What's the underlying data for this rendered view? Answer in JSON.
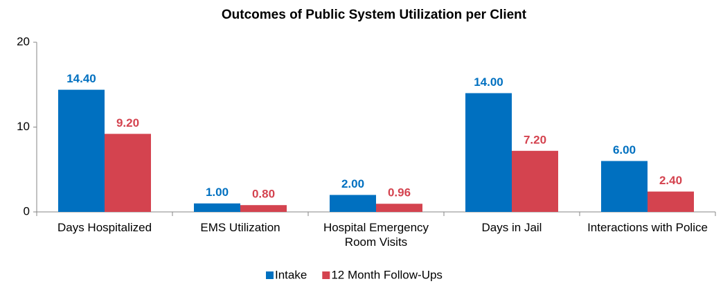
{
  "chart_data": {
    "type": "bar",
    "title": "Outcomes of Public System Utilization per Client",
    "categories": [
      "Days Hospitalized",
      "EMS Utilization",
      "Hospital Emergency Room Visits",
      "Days in Jail",
      "Interactions with Police"
    ],
    "series": [
      {
        "name": "Intake",
        "color": "#0070c0",
        "values": [
          14.4,
          1,
          2,
          14,
          6
        ],
        "value_labels": [
          "14.40",
          "1.00",
          "2.00",
          "14.00",
          "6.00"
        ]
      },
      {
        "name": "12 Month Follow-Ups",
        "color": "#d4434f",
        "values": [
          9.2,
          0.8,
          0.96,
          7.2,
          2.4
        ],
        "value_labels": [
          "9.20",
          "0.80",
          "0.96",
          "7.20",
          "2.40"
        ]
      }
    ],
    "ylim": [
      0,
      20
    ],
    "yticks": [
      0,
      10,
      20
    ],
    "grid": false,
    "legend": "bottom"
  }
}
